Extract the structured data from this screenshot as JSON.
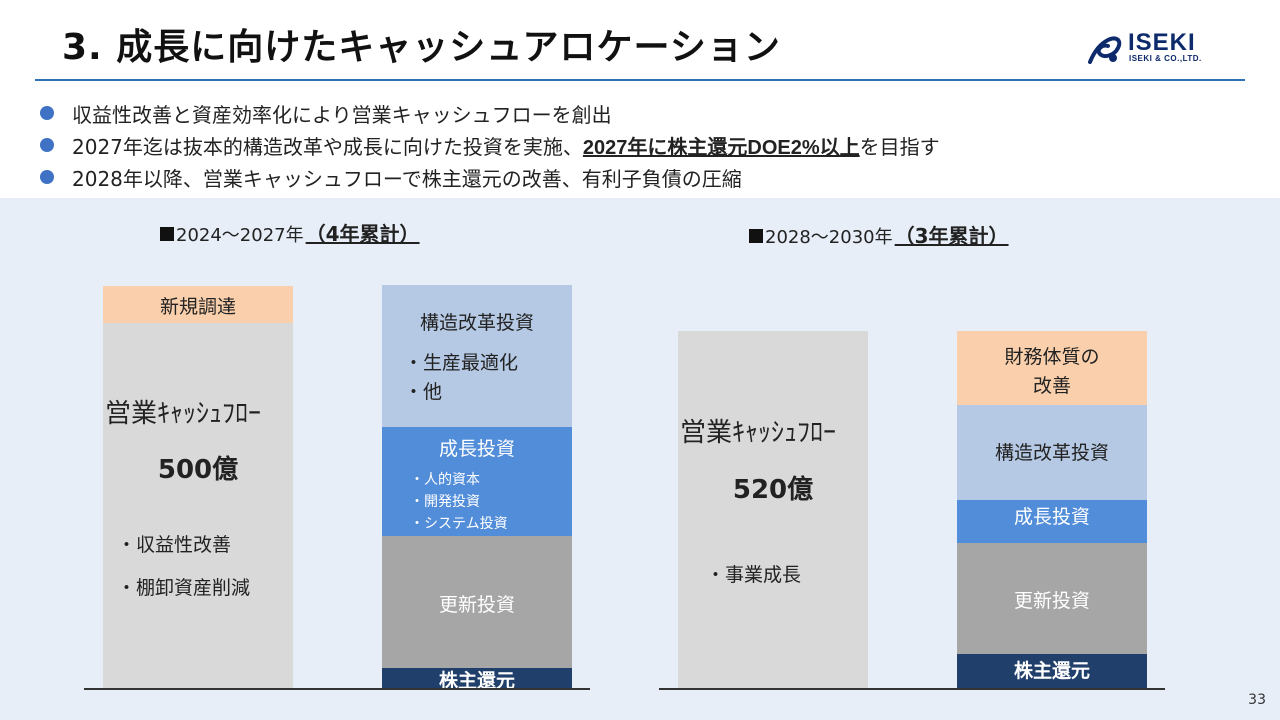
{
  "header": {
    "title": "3. 成長に向けたキャッシュアロケーション",
    "logo": {
      "word": "ISEKI",
      "sub": "ISEKI & CO.,LTD."
    }
  },
  "bullets": [
    {
      "text": "収益性改善と資産効率化により営業キャッシュフローを創出"
    },
    {
      "pre": "2027年迄は抜本的構造改革や成長に向けた投資を実施、",
      "strong": "2027年に株主還元DOE2%以上",
      "post": "を目指す"
    },
    {
      "text": "2028年以降、営業キャッシュフローで株主還元の改善、有利子負債の圧縮"
    }
  ],
  "left": {
    "period": "2024～2027年",
    "cumulative": "（4年累計）",
    "source": {
      "new_funding": "新規調達",
      "ocf_label": "営業ｷｬｯｼｭﾌﾛｰ",
      "amount": "500億",
      "item1": "・収益性改善",
      "item2": "・棚卸資産削減"
    },
    "uses": {
      "structural": "構造改革投資",
      "structural_item1": "・生産最適化",
      "structural_item2": "・他",
      "growth": "成長投資",
      "growth_item1": "・人的資本",
      "growth_item2": "・開発投資",
      "growth_item3": "・システム投資",
      "renewal": "更新投資",
      "return": "株主還元"
    }
  },
  "right": {
    "period": "2028～2030年",
    "cumulative": "（3年累計）",
    "source": {
      "ocf_label": "営業ｷｬｯｼｭﾌﾛｰ",
      "amount": "520億",
      "item1": "・事業成長"
    },
    "uses": {
      "financial_line1": "財務体質の",
      "financial_line2": "改善",
      "structural": "構造改革投資",
      "growth": "成長投資",
      "renewal": "更新投資",
      "return": "株主還元"
    }
  },
  "colors": {
    "title_rule": "#2f6fb5",
    "bullet_dot": "#3f72c4",
    "panel_bg": "#e8eef8",
    "peach": "#f9cfac",
    "light_gray": "#d9d9d9",
    "light_blue": "#b5c9e4",
    "blue": "#528dd9",
    "gray": "#a6a6a6",
    "navy": "#203f6b"
  },
  "page_number": "33"
}
